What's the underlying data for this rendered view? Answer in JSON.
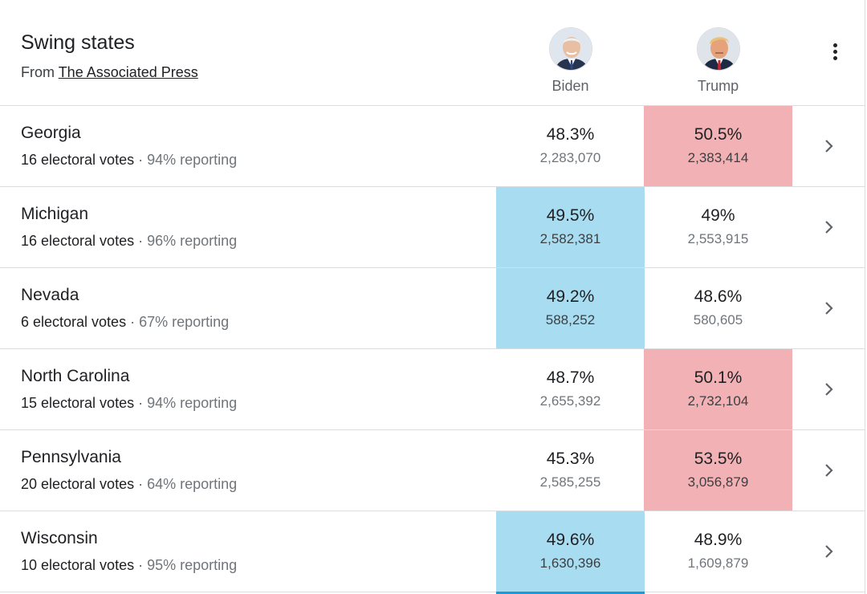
{
  "header": {
    "title": "Swing states",
    "source_prefix": "From",
    "source_link": "The Associated Press"
  },
  "candidates": [
    {
      "name": "Biden",
      "avatar_icon": "biden-avatar",
      "color": "#a8dcf0"
    },
    {
      "name": "Trump",
      "avatar_icon": "trump-avatar",
      "color": "#f2b1b4"
    }
  ],
  "menu_icon": "more-vert-icon",
  "rows": [
    {
      "state": "Georgia",
      "electoral": "16 electoral votes",
      "reporting": "94% reporting",
      "biden_pct": "48.3%",
      "biden_votes": "2,283,070",
      "trump_pct": "50.5%",
      "trump_votes": "2,383,414",
      "leader": "trump"
    },
    {
      "state": "Michigan",
      "electoral": "16 electoral votes",
      "reporting": "96% reporting",
      "biden_pct": "49.5%",
      "biden_votes": "2,582,381",
      "trump_pct": "49%",
      "trump_votes": "2,553,915",
      "leader": "biden"
    },
    {
      "state": "Nevada",
      "electoral": "6 electoral votes",
      "reporting": "67% reporting",
      "biden_pct": "49.2%",
      "biden_votes": "588,252",
      "trump_pct": "48.6%",
      "trump_votes": "580,605",
      "leader": "biden"
    },
    {
      "state": "North Carolina",
      "electoral": "15 electoral votes",
      "reporting": "94% reporting",
      "biden_pct": "48.7%",
      "biden_votes": "2,655,392",
      "trump_pct": "50.1%",
      "trump_votes": "2,732,104",
      "leader": "trump"
    },
    {
      "state": "Pennsylvania",
      "electoral": "20 electoral votes",
      "reporting": "64% reporting",
      "biden_pct": "45.3%",
      "biden_votes": "2,585,255",
      "trump_pct": "53.5%",
      "trump_votes": "3,056,879",
      "leader": "trump"
    },
    {
      "state": "Wisconsin",
      "electoral": "10 electoral votes",
      "reporting": "95% reporting",
      "biden_pct": "49.6%",
      "biden_votes": "1,630,396",
      "trump_pct": "48.9%",
      "trump_votes": "1,609,879",
      "leader": "biden"
    }
  ]
}
